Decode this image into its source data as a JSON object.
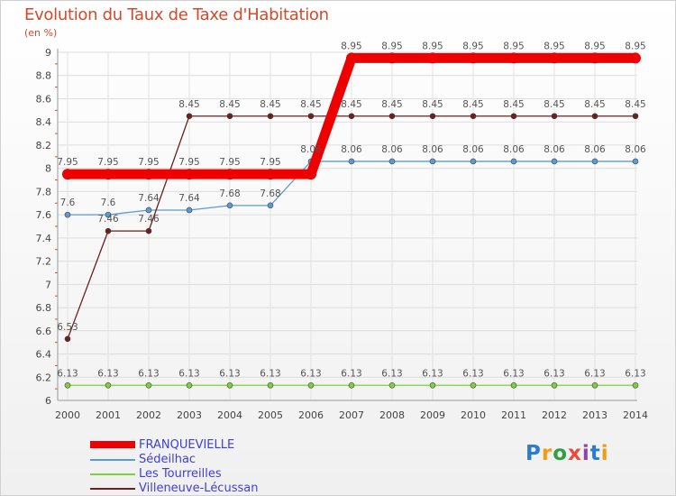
{
  "chart_data": {
    "type": "line",
    "title": "Evolution du Taux de Taxe d'Habitation",
    "subtitle": "(en %)",
    "xlabel": "",
    "ylabel": "",
    "ylim": [
      6,
      9
    ],
    "yticks": [
      "6",
      "6.2",
      "6.4",
      "6.6",
      "6.8",
      "7",
      "7.2",
      "7.4",
      "7.6",
      "7.8",
      "8",
      "8.2",
      "8.4",
      "8.6",
      "8.8",
      "9"
    ],
    "x": [
      "2000",
      "2001",
      "2002",
      "2003",
      "2004",
      "2005",
      "2006",
      "2007",
      "2008",
      "2009",
      "2010",
      "2011",
      "2012",
      "2013",
      "2014"
    ],
    "grid": true,
    "legend_position": "bottom-left",
    "series": [
      {
        "name": "FRANQUEVIELLE",
        "color": "#ee0000",
        "values": [
          7.95,
          7.95,
          7.95,
          7.95,
          7.95,
          7.95,
          7.95,
          8.95,
          8.95,
          8.95,
          8.95,
          8.95,
          8.95,
          8.95,
          8.95
        ],
        "labels": [
          "7.95",
          "7.95",
          "7.95",
          "7.95",
          "7.95",
          "7.95",
          "",
          "8.95",
          "8.95",
          "8.95",
          "8.95",
          "8.95",
          "8.95",
          "8.95",
          "8.95"
        ]
      },
      {
        "name": "Sédeilhac",
        "color": "#5b9bd5",
        "values": [
          7.6,
          7.6,
          7.64,
          7.64,
          7.68,
          7.68,
          8.06,
          8.06,
          8.06,
          8.06,
          8.06,
          8.06,
          8.06,
          8.06,
          8.06
        ],
        "labels": [
          "7.6",
          "7.6",
          "7.64",
          "7.64",
          "7.68",
          "7.68",
          "8.06",
          "8.06",
          "8.06",
          "8.06",
          "8.06",
          "8.06",
          "8.06",
          "8.06",
          "8.06"
        ]
      },
      {
        "name": "Les Tourreilles",
        "color": "#7fd13b",
        "values": [
          6.13,
          6.13,
          6.13,
          6.13,
          6.13,
          6.13,
          6.13,
          6.13,
          6.13,
          6.13,
          6.13,
          6.13,
          6.13,
          6.13,
          6.13
        ],
        "labels": [
          "6.13",
          "6.13",
          "6.13",
          "6.13",
          "6.13",
          "6.13",
          "6.13",
          "6.13",
          "6.13",
          "6.13",
          "6.13",
          "6.13",
          "6.13",
          "6.13",
          "6.13"
        ]
      },
      {
        "name": "Villeneuve-Lécussan",
        "color": "#6b1f1f",
        "values": [
          6.53,
          7.46,
          7.46,
          8.45,
          8.45,
          8.45,
          8.45,
          8.45,
          8.45,
          8.45,
          8.45,
          8.45,
          8.45,
          8.45,
          8.45
        ],
        "labels": [
          "6.53",
          "7.46",
          "7.46",
          "8.45",
          "8.45",
          "8.45",
          "8.45",
          "8.45",
          "8.45",
          "8.45",
          "8.45",
          "8.45",
          "8.45",
          "8.45",
          "8.45"
        ]
      }
    ]
  },
  "logo": {
    "letters": [
      "P",
      "r",
      "o",
      "x",
      "i",
      "t",
      "i"
    ],
    "colors": [
      "#2b7bd6",
      "#f39c12",
      "#2ea043",
      "#e74c3c",
      "#8e44ad",
      "#2b7bd6",
      "#f39c12"
    ]
  }
}
